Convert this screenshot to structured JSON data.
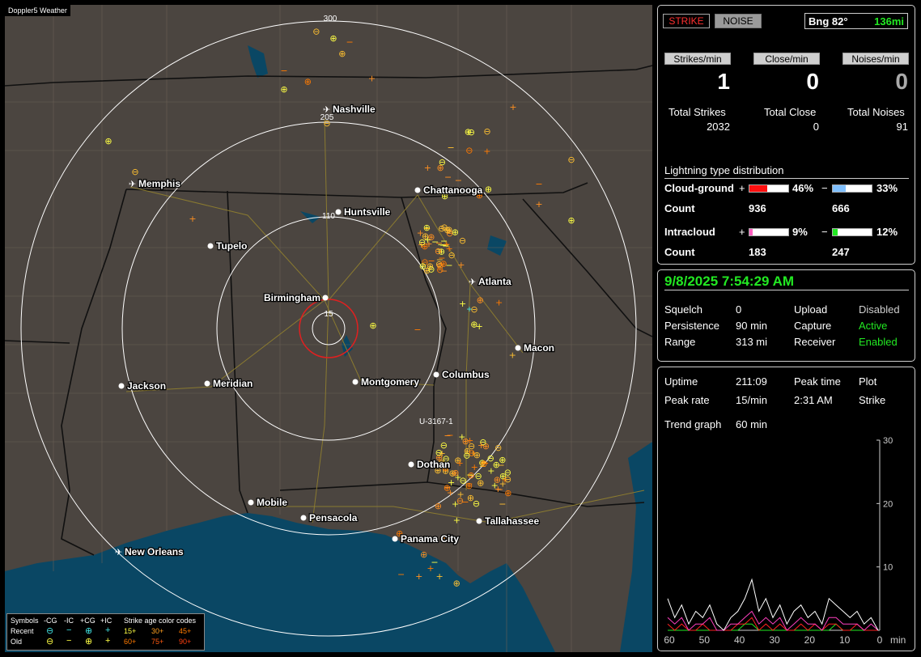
{
  "app_title": "Doppler5 Weather",
  "map": {
    "range_labels": [
      "300",
      "205",
      "110",
      "15"
    ],
    "road_label": "U-3167-1",
    "cities": [
      {
        "name": "Nashville",
        "icon": "airport-icon"
      },
      {
        "name": "Memphis",
        "icon": "airport-icon"
      },
      {
        "name": "Chattanooga",
        "icon": "city-dot-icon"
      },
      {
        "name": "Huntsville",
        "icon": "city-dot-icon"
      },
      {
        "name": "Tupelo",
        "icon": "city-dot-icon"
      },
      {
        "name": "Atlanta",
        "icon": "airport-icon"
      },
      {
        "name": "Birmingham",
        "icon": "city-dot-icon"
      },
      {
        "name": "Macon",
        "icon": "city-dot-icon"
      },
      {
        "name": "Jackson",
        "icon": "city-dot-icon"
      },
      {
        "name": "Meridian",
        "icon": "city-dot-icon"
      },
      {
        "name": "Montgomery",
        "icon": "city-dot-icon"
      },
      {
        "name": "Columbus",
        "icon": "city-dot-icon"
      },
      {
        "name": "Dothan",
        "icon": "city-dot-icon"
      },
      {
        "name": "Mobile",
        "icon": "city-dot-icon"
      },
      {
        "name": "Pensacola",
        "icon": "city-dot-icon"
      },
      {
        "name": "Tallahassee",
        "icon": "city-dot-icon"
      },
      {
        "name": "Panama City",
        "icon": "city-dot-icon"
      },
      {
        "name": "New Orleans",
        "icon": "airport-icon"
      }
    ],
    "legend": {
      "header": [
        "Symbols",
        "-CG",
        "-IC",
        "+CG",
        "+IC",
        "Strike age color codes"
      ],
      "rows": [
        {
          "label": "Recent",
          "ages": [
            "15+",
            "30+",
            "45+"
          ]
        },
        {
          "label": "Old",
          "ages": [
            "60+",
            "75+",
            "90+"
          ]
        }
      ],
      "age_colors": [
        "#ffff44",
        "#ffa020",
        "#ff7a00",
        "#ff7a00",
        "#ff5a10",
        "#ff4010"
      ]
    }
  },
  "strike_panel": {
    "strike_btn": "STRIKE",
    "noise_btn": "NOISE",
    "bearing": "Bng 82°",
    "distance": "136mi",
    "rate_labels": [
      "Strikes/min",
      "Close/min",
      "Noises/min"
    ],
    "rate_values": [
      "1",
      "0",
      "0"
    ],
    "total_labels": [
      "Total Strikes",
      "Total Close",
      "Total Noises"
    ],
    "total_values": [
      "2032",
      "0",
      "91"
    ],
    "dist_title": "Lightning type distribution",
    "cloud_ground": {
      "label": "Cloud-ground",
      "pos_pct": "46%",
      "neg_pct": "33%",
      "pos_count": "936",
      "neg_count": "666",
      "pos_frac": 0.46,
      "neg_frac": 0.33
    },
    "intracloud": {
      "label": "Intracloud",
      "pos_pct": "9%",
      "neg_pct": "12%",
      "pos_count": "183",
      "neg_count": "247",
      "pos_frac": 0.09,
      "neg_frac": 0.12
    },
    "count_label": "Count",
    "plus": "+",
    "minus": "−"
  },
  "status_panel": {
    "datetime": "9/8/2025 7:54:29 AM",
    "rows": [
      {
        "k1": "Squelch",
        "v1": "0",
        "k2": "Upload",
        "v2": "Disabled"
      },
      {
        "k1": "Persistence",
        "v1": "90 min",
        "k2": "Capture",
        "v2": "Active"
      },
      {
        "k1": "Range",
        "v1": "313 mi",
        "k2": "Receiver",
        "v2": "Enabled"
      }
    ]
  },
  "trend_panel": {
    "uptime_label": "Uptime",
    "uptime": "211:09",
    "peak_time_label": "Peak time",
    "plot_label": "Plot",
    "peak_rate_label": "Peak rate",
    "peak_rate": "15/min",
    "peak_time": "2:31 AM",
    "plot_value": "Strike",
    "trend_label": "Trend graph",
    "trend_value": "60 min",
    "y_ticks": [
      "30",
      "20",
      "10"
    ],
    "x_ticks": [
      "60",
      "50",
      "40",
      "30",
      "20",
      "10",
      "0"
    ],
    "x_unit": "min"
  },
  "chart_data": {
    "type": "line",
    "xlabel": "min",
    "xlim": [
      60,
      0
    ],
    "ylim": [
      0,
      30
    ],
    "x": [
      60,
      58,
      56,
      54,
      52,
      50,
      48,
      46,
      44,
      42,
      40,
      38,
      36,
      34,
      32,
      30,
      28,
      26,
      24,
      22,
      20,
      18,
      16,
      14,
      12,
      10,
      8,
      6,
      4,
      2,
      0
    ],
    "series": [
      {
        "values": [
          5,
          2,
          4,
          1,
          3,
          2,
          4,
          1,
          0,
          2,
          3,
          5,
          8,
          3,
          5,
          2,
          4,
          1,
          3,
          4,
          2,
          3,
          1,
          5,
          4,
          3,
          2,
          3,
          1,
          2,
          0
        ]
      },
      {
        "values": [
          2,
          1,
          2,
          0,
          1,
          1,
          2,
          0,
          0,
          1,
          1,
          2,
          3,
          1,
          2,
          1,
          2,
          0,
          1,
          2,
          1,
          1,
          0,
          2,
          2,
          1,
          1,
          1,
          0,
          1,
          0
        ]
      },
      {
        "values": [
          1,
          0,
          1,
          0,
          0,
          1,
          0,
          0,
          0,
          0,
          1,
          1,
          2,
          0,
          1,
          0,
          1,
          0,
          0,
          1,
          0,
          1,
          0,
          1,
          1,
          0,
          0,
          1,
          0,
          0,
          0
        ]
      },
      {
        "values": [
          0,
          0,
          0,
          0,
          0,
          0,
          0,
          0,
          0,
          0,
          0,
          1,
          1,
          0,
          0,
          0,
          0,
          0,
          0,
          0,
          0,
          0,
          0,
          0,
          1,
          0,
          0,
          0,
          0,
          0,
          0
        ]
      }
    ],
    "colors": [
      "#ffffff",
      "#ff40c0",
      "#ff2020",
      "#22e822"
    ]
  }
}
